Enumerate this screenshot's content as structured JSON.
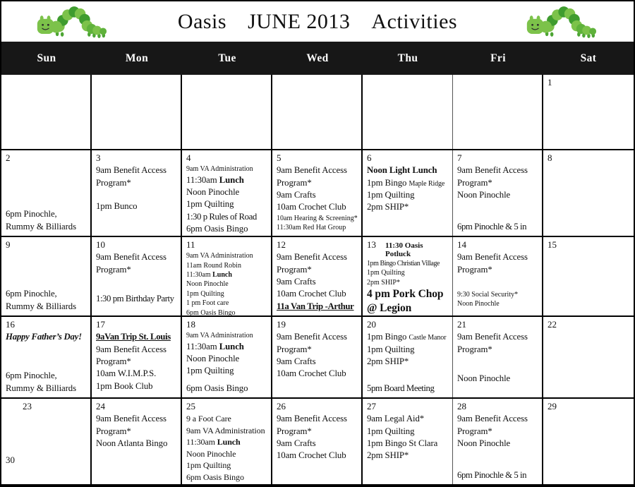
{
  "title": {
    "part1": "Oasis",
    "part2": "JUNE 2013",
    "part3": "Activities"
  },
  "icons": {
    "left": "caterpillar-icon",
    "right": "caterpillar-icon"
  },
  "colors": {
    "header_bg": "#171717",
    "header_text": "#ffffff",
    "grid_line": "#000000",
    "worm_light": "#7cc24a",
    "worm_mid": "#5fb23b",
    "worm_dark": "#3f9c2f"
  },
  "calendar": {
    "day_names": [
      "Sun",
      "Mon",
      "Tue",
      "Wed",
      "Thu",
      "Fri",
      "Sat"
    ],
    "weeks": [
      [
        {},
        {},
        {},
        {},
        {},
        {},
        {
          "day": "1",
          "lines": []
        }
      ],
      [
        {
          "day": "2",
          "lines": [
            {
              "c": "n push",
              "seg": [
                {
                  "t": "6pm Pinochle, Rummy & Billiards"
                }
              ]
            }
          ]
        },
        {
          "day": "3",
          "lines": [
            {
              "c": "n",
              "seg": [
                {
                  "t": "9am  Benefit Access Program*"
                }
              ]
            },
            {
              "c": "sp16"
            },
            {
              "c": "n",
              "seg": [
                {
                  "t": "1pm Bunco"
                }
              ]
            }
          ]
        },
        {
          "day": "4",
          "lines": [
            {
              "c": "s",
              "seg": [
                {
                  "t": "9am VA Administration"
                }
              ]
            },
            {
              "c": "n",
              "seg": [
                {
                  "t": "11:30am "
                },
                {
                  "t": "Lunch",
                  "c": "b"
                }
              ]
            },
            {
              "c": "n",
              "seg": [
                {
                  "t": "Noon Pinochle"
                }
              ]
            },
            {
              "c": "n",
              "seg": [
                {
                  "t": "1pm Quilting"
                }
              ]
            },
            {
              "c": "n tight",
              "seg": [
                {
                  "t": "1:30 p Rules of Road"
                }
              ]
            },
            {
              "c": "n push",
              "seg": [
                {
                  "t": "6pm Oasis Bingo"
                }
              ]
            }
          ]
        },
        {
          "day": "5",
          "lines": [
            {
              "c": "n",
              "seg": [
                {
                  "t": "9am Benefit Access Program*"
                }
              ]
            },
            {
              "c": "n",
              "seg": [
                {
                  "t": "9am Crafts"
                }
              ]
            },
            {
              "c": "n",
              "seg": [
                {
                  "t": "10am Crochet Club"
                }
              ]
            },
            {
              "c": "s",
              "seg": [
                {
                  "t": "10am Hearing & Screening*"
                }
              ]
            },
            {
              "c": "s",
              "seg": [
                {
                  "t": "11:30am Red Hat Group"
                }
              ]
            }
          ]
        },
        {
          "day": "6",
          "lines": [
            {
              "c": "n",
              "seg": [
                {
                  "t": "Noon Light Lunch",
                  "c": "b"
                }
              ]
            },
            {
              "c": "n",
              "seg": [
                {
                  "t": "1pm Bingo "
                },
                {
                  "t": "Maple Ridge",
                  "c": "xs"
                }
              ]
            },
            {
              "c": "n",
              "seg": [
                {
                  "t": "1pm Quilting"
                }
              ]
            },
            {
              "c": "n",
              "seg": [
                {
                  "t": "2pm SHIP*"
                }
              ]
            }
          ]
        },
        {
          "day": "7",
          "lines": [
            {
              "c": "n",
              "seg": [
                {
                  "t": "9am Benefit Access Program*"
                }
              ]
            },
            {
              "c": "n",
              "seg": [
                {
                  "t": "Noon Pinochle"
                }
              ]
            },
            {
              "c": "n push tight",
              "seg": [
                {
                  "t": "6pm Pinochle & 5 in"
                }
              ]
            }
          ]
        },
        {
          "day": "8",
          "lines": []
        }
      ],
      [
        {
          "day": "9",
          "lines": [
            {
              "c": "n push",
              "seg": [
                {
                  "t": "6pm Pinochle, Rummy & Billiards"
                }
              ]
            }
          ]
        },
        {
          "day": "10",
          "lines": [
            {
              "c": "n",
              "seg": [
                {
                  "t": "9am Benefit Access Program*"
                }
              ]
            },
            {
              "c": "sp24"
            },
            {
              "c": "n tight",
              "seg": [
                {
                  "t": "1:30 pm Birthday Party"
                }
              ]
            }
          ]
        },
        {
          "day": "11",
          "lines": [
            {
              "c": "s",
              "seg": [
                {
                  "t": "9am VA Administration"
                }
              ]
            },
            {
              "c": "s",
              "seg": [
                {
                  "t": "11am Round Robin"
                }
              ]
            },
            {
              "c": "s",
              "seg": [
                {
                  "t": "11:30am "
                },
                {
                  "t": "Lunch",
                  "c": "b"
                }
              ]
            },
            {
              "c": "s",
              "seg": [
                {
                  "t": "Noon Pinochle"
                }
              ]
            },
            {
              "c": "s",
              "seg": [
                {
                  "t": "1pm Quilting"
                }
              ]
            },
            {
              "c": "s",
              "seg": [
                {
                  "t": "1 pm Foot care"
                }
              ]
            },
            {
              "c": "s",
              "seg": [
                {
                  "t": "6pm Oasis Bingo"
                }
              ]
            }
          ]
        },
        {
          "day": "12",
          "lines": [
            {
              "c": "n",
              "seg": [
                {
                  "t": "9am Benefit Access Program*"
                }
              ]
            },
            {
              "c": "n",
              "seg": [
                {
                  "t": "9am Crafts"
                }
              ]
            },
            {
              "c": "n",
              "seg": [
                {
                  "t": "10am Crochet Club"
                }
              ]
            },
            {
              "c": "n tight",
              "seg": [
                {
                  "t": "11a Van Trip -Arthur",
                  "c": "bu"
                }
              ]
            }
          ]
        },
        {
          "day": "13",
          "head": [
            {
              "t": "11:30 Oasis Potluck",
              "c": "sb"
            }
          ],
          "lines": [
            {
              "c": "s tight",
              "seg": [
                {
                  "t": "1pm Bingo Christian Village"
                }
              ]
            },
            {
              "c": "s",
              "seg": [
                {
                  "t": "1pm Quilting"
                }
              ]
            },
            {
              "c": "s",
              "seg": [
                {
                  "t": "2pm SHIP*"
                }
              ]
            },
            {
              "c": "lg",
              "seg": [
                {
                  "t": "4 pm Pork Chop @ Legion"
                }
              ]
            }
          ]
        },
        {
          "day": "14",
          "lines": [
            {
              "c": "n",
              "seg": [
                {
                  "t": "9am Benefit Access Program*"
                }
              ]
            },
            {
              "c": "sp20"
            },
            {
              "c": "s",
              "seg": [
                {
                  "t": "9:30 Social Security*"
                }
              ]
            },
            {
              "c": "s",
              "seg": [
                {
                  "t": "Noon Pinochle"
                }
              ]
            }
          ]
        },
        {
          "day": "15",
          "lines": []
        }
      ],
      [
        {
          "day": "16",
          "lines": [
            {
              "c": "n tight",
              "seg": [
                {
                  "t": "Happy Father’s Day!",
                  "c": "bi"
                }
              ]
            },
            {
              "c": "n push",
              "seg": [
                {
                  "t": "6pm Pinochle, Rummy & Billiards"
                }
              ]
            }
          ]
        },
        {
          "day": "17",
          "lines": [
            {
              "c": "n tight",
              "seg": [
                {
                  "t": "9aVan Trip St. Louis",
                  "c": "bu"
                }
              ]
            },
            {
              "c": "n",
              "seg": [
                {
                  "t": "9am Benefit Access Program*"
                }
              ]
            },
            {
              "c": "n",
              "seg": [
                {
                  "t": "10am W.I.M.P.S."
                }
              ]
            },
            {
              "c": "n",
              "seg": [
                {
                  "t": "1pm Book Club"
                }
              ]
            }
          ]
        },
        {
          "day": "18",
          "lines": [
            {
              "c": "s",
              "seg": [
                {
                  "t": "9am VA Administration"
                }
              ]
            },
            {
              "c": "n",
              "seg": [
                {
                  "t": "11:30am "
                },
                {
                  "t": "Lunch",
                  "c": "b"
                }
              ]
            },
            {
              "c": "n",
              "seg": [
                {
                  "t": "Noon Pinochle"
                }
              ]
            },
            {
              "c": "n",
              "seg": [
                {
                  "t": "1pm Quilting"
                }
              ]
            },
            {
              "c": "n push",
              "seg": [
                {
                  "t": "6pm Oasis Bingo"
                }
              ]
            }
          ]
        },
        {
          "day": "19",
          "lines": [
            {
              "c": "n",
              "seg": [
                {
                  "t": "9am Benefit Access Program*"
                }
              ]
            },
            {
              "c": "n",
              "seg": [
                {
                  "t": "9am Crafts"
                }
              ]
            },
            {
              "c": "n",
              "seg": [
                {
                  "t": "10am Crochet Club"
                }
              ]
            }
          ]
        },
        {
          "day": "20",
          "lines": [
            {
              "c": "n",
              "seg": [
                {
                  "t": "1pm Bingo "
                },
                {
                  "t": "Castle Manor",
                  "c": "xs"
                }
              ]
            },
            {
              "c": "n",
              "seg": [
                {
                  "t": "1pm Quilting"
                }
              ]
            },
            {
              "c": "n",
              "seg": [
                {
                  "t": "2pm SHIP*"
                }
              ]
            },
            {
              "c": "n push tight",
              "seg": [
                {
                  "t": "5pm  Board Meeting"
                }
              ]
            }
          ]
        },
        {
          "day": "21",
          "lines": [
            {
              "c": "n",
              "seg": [
                {
                  "t": "9am Benefit Access Program*"
                }
              ]
            },
            {
              "c": "sp24"
            },
            {
              "c": "n",
              "seg": [
                {
                  "t": "Noon Pinochle"
                }
              ]
            }
          ]
        },
        {
          "day": "22",
          "lines": []
        }
      ],
      [
        {
          "day": "23",
          "day_c": "indent",
          "lines": [
            {
              "c": "date2 push",
              "seg": [
                {
                  "t": "30"
                }
              ]
            }
          ]
        },
        {
          "day": "24",
          "lines": [
            {
              "c": "n",
              "seg": [
                {
                  "t": "9am Benefit Access Program*"
                }
              ]
            },
            {
              "c": "n",
              "seg": [
                {
                  "t": "Noon Atlanta Bingo"
                }
              ]
            }
          ]
        },
        {
          "day": "25",
          "lines": [
            {
              "c": "m",
              "seg": [
                {
                  "t": "9 a Foot Care"
                }
              ]
            },
            {
              "c": "m",
              "seg": [
                {
                  "t": "9am VA Administration"
                }
              ]
            },
            {
              "c": "m",
              "seg": [
                {
                  "t": "11:30am "
                },
                {
                  "t": "Lunch",
                  "c": "b"
                }
              ]
            },
            {
              "c": "m",
              "seg": [
                {
                  "t": "Noon Pinochle"
                }
              ]
            },
            {
              "c": "m",
              "seg": [
                {
                  "t": "1pm Quilting"
                }
              ]
            },
            {
              "c": "m",
              "seg": [
                {
                  "t": "6pm Oasis Bingo"
                }
              ]
            }
          ]
        },
        {
          "day": "26",
          "lines": [
            {
              "c": "n",
              "seg": [
                {
                  "t": "9am Benefit Access Program*"
                }
              ]
            },
            {
              "c": "n",
              "seg": [
                {
                  "t": "9am Crafts"
                }
              ]
            },
            {
              "c": "n",
              "seg": [
                {
                  "t": "10am Crochet Club"
                }
              ]
            }
          ]
        },
        {
          "day": "27",
          "lines": [
            {
              "c": "n",
              "seg": [
                {
                  "t": "9am Legal Aid*"
                }
              ]
            },
            {
              "c": "n",
              "seg": [
                {
                  "t": "1pm Quilting"
                }
              ]
            },
            {
              "c": "n",
              "seg": [
                {
                  "t": "1pm Bingo St Clara"
                }
              ]
            },
            {
              "c": "n",
              "seg": [
                {
                  "t": "2pm SHIP*"
                }
              ]
            }
          ]
        },
        {
          "day": "28",
          "lines": [
            {
              "c": "n",
              "seg": [
                {
                  "t": "9am Benefit Access Program*"
                }
              ]
            },
            {
              "c": "n",
              "seg": [
                {
                  "t": "Noon Pinochle"
                }
              ]
            },
            {
              "c": "n push tight",
              "seg": [
                {
                  "t": "6pm Pinochle & 5 in"
                }
              ]
            }
          ]
        },
        {
          "day": "29",
          "lines": []
        }
      ]
    ]
  }
}
